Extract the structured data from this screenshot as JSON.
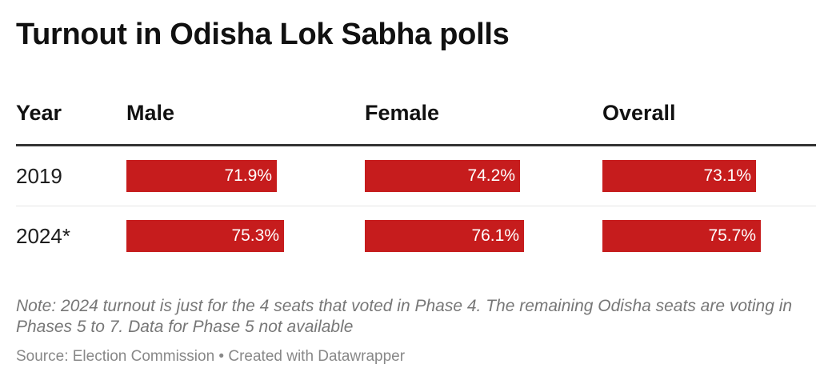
{
  "header": {
    "title": "Turnout in Odisha Lok Sabha polls"
  },
  "chart_data": {
    "type": "table",
    "title": "Turnout in Odisha Lok Sabha polls",
    "columns": [
      "Year",
      "Male",
      "Female",
      "Overall"
    ],
    "value_max": 100,
    "bar_color": "#c61c1d",
    "rows": [
      {
        "year": "2019",
        "values": [
          71.9,
          74.2,
          73.1
        ],
        "labels": [
          "71.9%",
          "74.2%",
          "73.1%"
        ]
      },
      {
        "year": "2024*",
        "values": [
          75.3,
          76.1,
          75.7
        ],
        "labels": [
          "75.3%",
          "76.1%",
          "75.7%"
        ]
      }
    ]
  },
  "footer": {
    "note": "Note: 2024 turnout is just for the 4 seats that voted in Phase 4. The remaining Odisha seats are voting in Phases 5 to 7. Data for Phase 5 not available",
    "source": "Source: Election Commission • Created with Datawrapper"
  }
}
